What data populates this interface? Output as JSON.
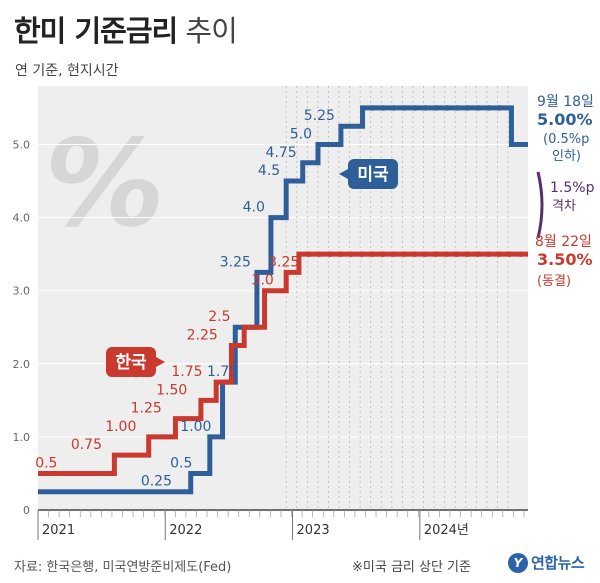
{
  "header": {
    "title_main": "한미 기준금리",
    "title_sub": "추이",
    "subtitle": "연 기준, 현지시간"
  },
  "footer": {
    "source": "자료: 한국은행, 미국연방준비제도(Fed)",
    "note": "※미국 금리 상단 기준",
    "logo": "연합뉴스"
  },
  "decoration": {
    "percent_symbol": "%"
  },
  "colors": {
    "us": "#2f5f99",
    "kr": "#c9392e",
    "gap": "#5b2d6b",
    "grid": "#d0d0d0",
    "bg_band": "#eeeeee"
  },
  "chart_data": {
    "type": "line",
    "step": true,
    "x_unit": "year",
    "xlim": [
      2021.0,
      2024.85
    ],
    "ylim": [
      0,
      5.8
    ],
    "y_ticks": [
      0,
      1.0,
      2.0,
      3.0,
      4.0,
      5.0
    ],
    "y_tick_labels": [
      "0",
      "1.0",
      "2.0",
      "3.0",
      "4.0",
      "5.0"
    ],
    "x_ticks": [
      2021,
      2022,
      2023,
      2024
    ],
    "x_tick_labels": [
      "2021",
      "2022",
      "2023",
      "2024년"
    ],
    "grid": "vertical dotted",
    "series": [
      {
        "name": "미국",
        "color": "#2f5f99",
        "points": [
          [
            2021.0,
            0.25
          ],
          [
            2022.2,
            0.5
          ],
          [
            2022.35,
            1.0
          ],
          [
            2022.45,
            1.75
          ],
          [
            2022.55,
            2.5
          ],
          [
            2022.72,
            3.25
          ],
          [
            2022.83,
            4.0
          ],
          [
            2022.95,
            4.5
          ],
          [
            2023.08,
            4.75
          ],
          [
            2023.2,
            5.0
          ],
          [
            2023.38,
            5.25
          ],
          [
            2023.55,
            5.5
          ],
          [
            2024.7,
            5.5
          ],
          [
            2024.72,
            5.0
          ],
          [
            2024.85,
            5.0
          ]
        ],
        "labels": [
          {
            "x": 2022.1,
            "y": 0.25,
            "text": "0.25"
          },
          {
            "x": 2022.26,
            "y": 0.5,
            "text": "0.5"
          },
          {
            "x": 2022.41,
            "y": 1.0,
            "text": "1.00"
          },
          {
            "x": 2022.62,
            "y": 1.75,
            "text": "1.75"
          },
          {
            "x": 2022.72,
            "y": 3.25,
            "text": "3.25"
          },
          {
            "x": 2022.83,
            "y": 4.0,
            "text": "4.0"
          },
          {
            "x": 2022.95,
            "y": 4.5,
            "text": "4.5"
          },
          {
            "x": 2023.08,
            "y": 4.75,
            "text": "4.75"
          },
          {
            "x": 2023.2,
            "y": 5.0,
            "text": "5.0"
          },
          {
            "x": 2023.38,
            "y": 5.25,
            "text": "5.25"
          }
        ]
      },
      {
        "name": "한국",
        "color": "#c9392e",
        "points": [
          [
            2021.0,
            0.5
          ],
          [
            2021.6,
            0.75
          ],
          [
            2021.87,
            1.0
          ],
          [
            2022.08,
            1.25
          ],
          [
            2022.28,
            1.5
          ],
          [
            2022.4,
            1.75
          ],
          [
            2022.52,
            2.25
          ],
          [
            2022.62,
            2.5
          ],
          [
            2022.78,
            3.0
          ],
          [
            2022.95,
            3.25
          ],
          [
            2023.05,
            3.5
          ],
          [
            2024.85,
            3.5
          ]
        ],
        "labels": [
          {
            "x": 2021.2,
            "y": 0.5,
            "text": "0.5"
          },
          {
            "x": 2021.55,
            "y": 0.75,
            "text": "0.75"
          },
          {
            "x": 2021.82,
            "y": 1.0,
            "text": "1.00"
          },
          {
            "x": 2022.02,
            "y": 1.25,
            "text": "1.25"
          },
          {
            "x": 2022.22,
            "y": 1.5,
            "text": "1.50"
          },
          {
            "x": 2022.34,
            "y": 1.75,
            "text": "1.75"
          },
          {
            "x": 2022.46,
            "y": 2.25,
            "text": "2.25"
          },
          {
            "x": 2022.56,
            "y": 2.5,
            "text": "2.5"
          },
          {
            "x": 2022.9,
            "y": 3.0,
            "text": "3.0"
          },
          {
            "x": 2023.1,
            "y": 3.25,
            "text": "3.25"
          }
        ]
      }
    ],
    "callouts": {
      "us": {
        "date": "9월 18일",
        "value": "5.00%",
        "detail1": "(0.5%p",
        "detail2": "인하)"
      },
      "gap": {
        "value": "1.5%p",
        "text": "격차"
      },
      "kr": {
        "date": "8월 22일",
        "value": "3.50%",
        "detail": "(동결)"
      }
    },
    "us_tag": "미국",
    "kr_tag": "한국"
  }
}
